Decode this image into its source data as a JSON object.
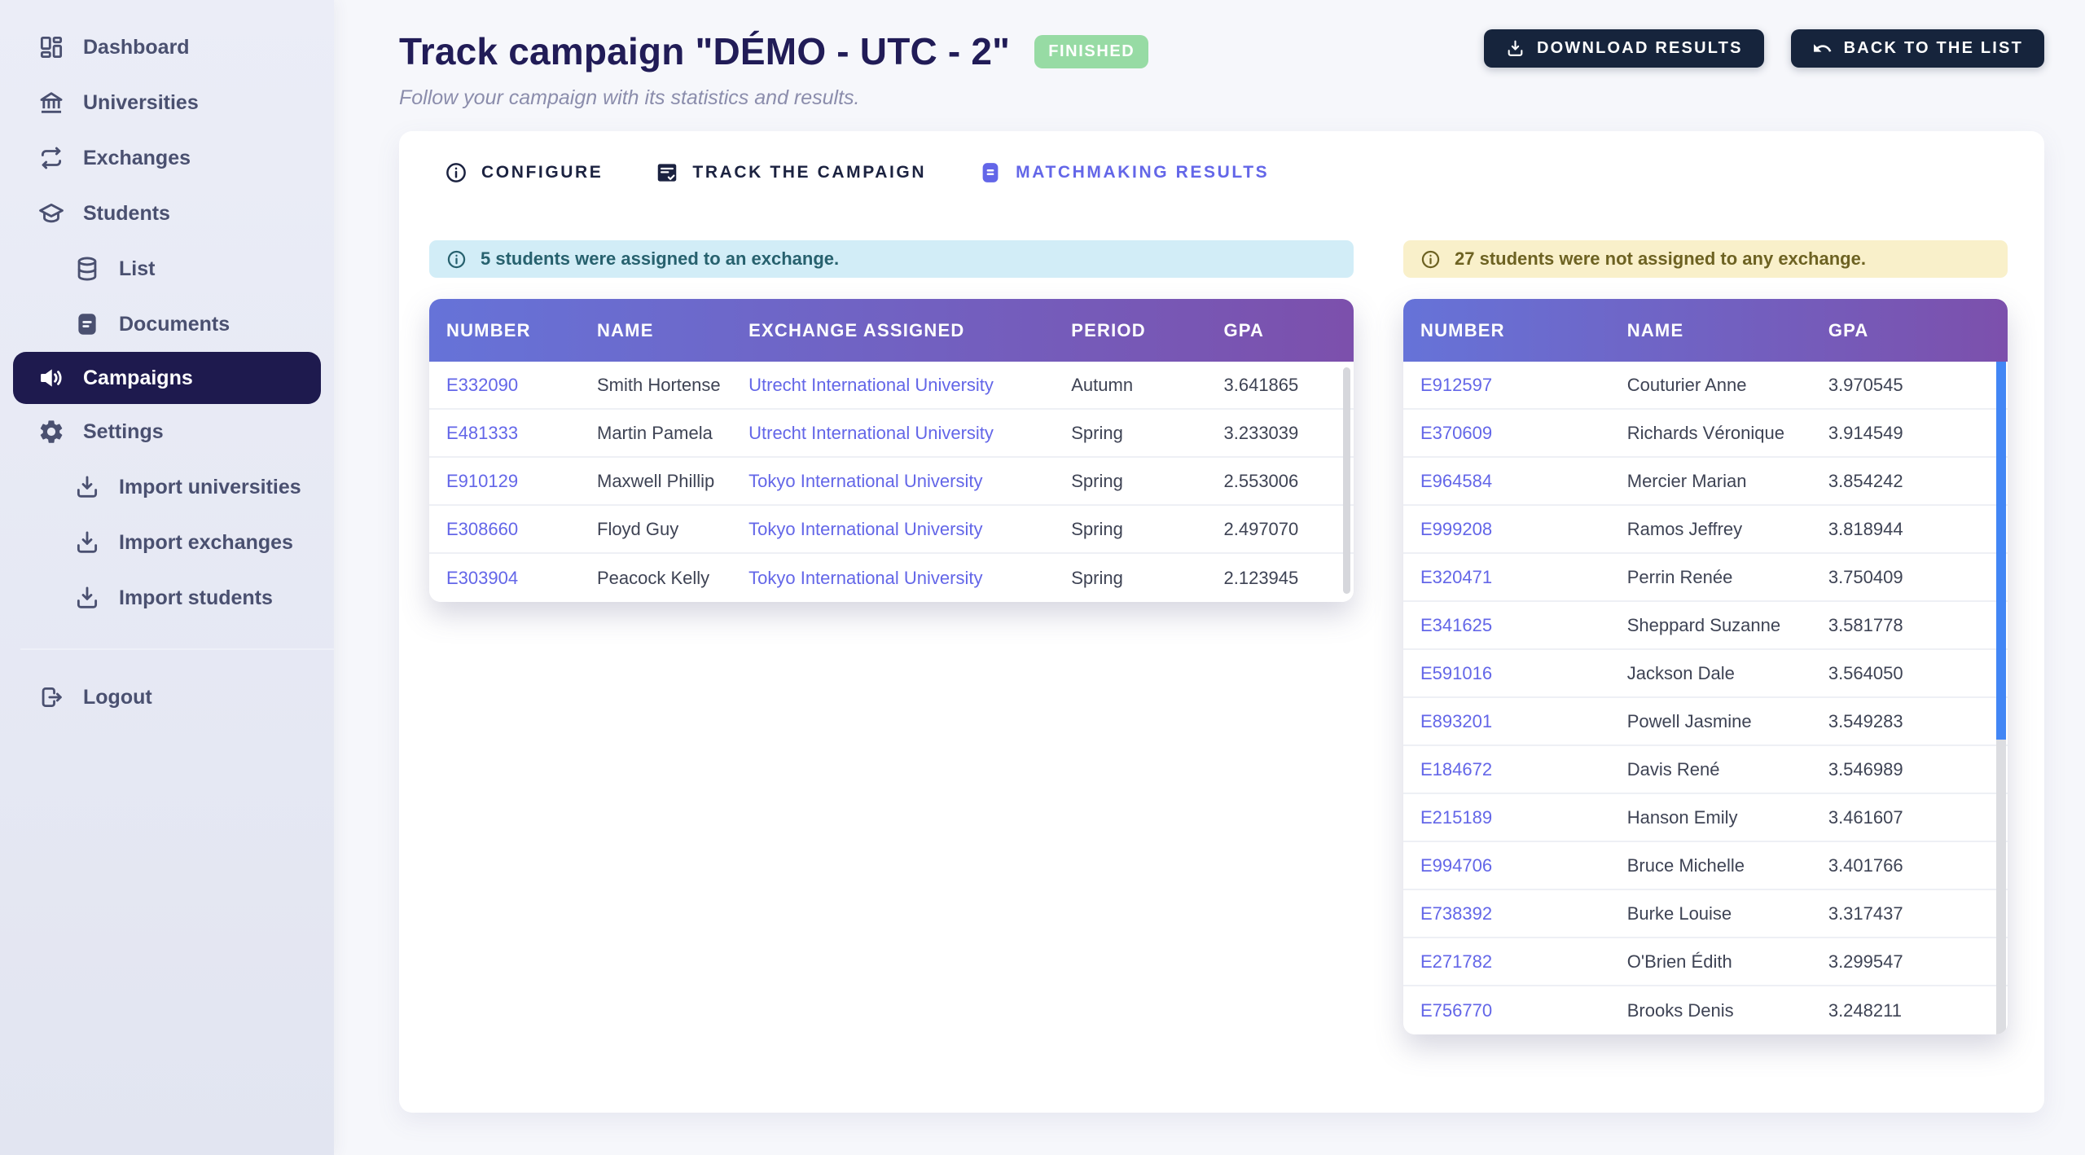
{
  "colors": {
    "accent": "#6366e8",
    "dark_button": "#16243c",
    "active_pill": "#1e1a4e",
    "badge_green": "#97dba4",
    "title": "#211c57",
    "grad1": "#6673d8",
    "grad2": "#7c50ac",
    "blue_bg": "#d2edf7",
    "blue_tx": "#27616e",
    "yellow_bg": "#f9f0ca",
    "yellow_tx": "#6d6222",
    "scrollbar_blue": "#4286f5"
  },
  "sidebar": {
    "items": [
      {
        "label": "Dashboard",
        "icon": "dashboard-icon"
      },
      {
        "label": "Universities",
        "icon": "bank-icon"
      },
      {
        "label": "Exchanges",
        "icon": "swap-icon"
      },
      {
        "label": "Students",
        "icon": "graduation-cap-icon"
      },
      {
        "label": "List",
        "icon": "database-icon",
        "indent": true
      },
      {
        "label": "Documents",
        "icon": "document-icon",
        "indent": true
      },
      {
        "label": "Campaigns",
        "icon": "megaphone-icon",
        "active": true
      },
      {
        "label": "Settings",
        "icon": "gear-icon"
      },
      {
        "label": "Import universities",
        "icon": "download-icon",
        "indent": true
      },
      {
        "label": "Import exchanges",
        "icon": "download-icon",
        "indent": true
      },
      {
        "label": "Import students",
        "icon": "download-icon",
        "indent": true
      }
    ],
    "logout_label": "Logout",
    "logout_icon": "logout-icon"
  },
  "header": {
    "title": "Track campaign \"DÉMO - UTC - 2\"",
    "status_badge": "FINISHED",
    "subtitle": "Follow your campaign with its statistics and results.",
    "download_button": "DOWNLOAD RESULTS",
    "download_icon": "download-icon",
    "back_button": "BACK TO THE LIST",
    "back_icon": "undo-icon"
  },
  "tabs": [
    {
      "label": "CONFIGURE",
      "icon": "info-icon"
    },
    {
      "label": "TRACK THE CAMPAIGN",
      "icon": "clipboard-check-icon"
    },
    {
      "label": "MATCHMAKING RESULTS",
      "icon": "file-icon",
      "active": true
    }
  ],
  "assigned": {
    "banner": "5 students were assigned to an exchange.",
    "banner_icon": "info-icon",
    "columns": [
      "NUMBER",
      "NAME",
      "EXCHANGE ASSIGNED",
      "PERIOD",
      "GPA"
    ],
    "rows": [
      [
        "E332090",
        "Smith Hortense",
        "Utrecht International University",
        "Autumn",
        "3.641865"
      ],
      [
        "E481333",
        "Martin Pamela",
        "Utrecht International University",
        "Spring",
        "3.233039"
      ],
      [
        "E910129",
        "Maxwell Phillip",
        "Tokyo International University",
        "Spring",
        "2.553006"
      ],
      [
        "E308660",
        "Floyd Guy",
        "Tokyo International University",
        "Spring",
        "2.497070"
      ],
      [
        "E303904",
        "Peacock Kelly",
        "Tokyo International University",
        "Spring",
        "2.123945"
      ]
    ]
  },
  "unassigned": {
    "banner": "27 students were not assigned to any exchange.",
    "banner_icon": "info-icon",
    "columns": [
      "NUMBER",
      "NAME",
      "GPA"
    ],
    "rows": [
      [
        "E912597",
        "Couturier Anne",
        "3.970545"
      ],
      [
        "E370609",
        "Richards Véronique",
        "3.914549"
      ],
      [
        "E964584",
        "Mercier Marian",
        "3.854242"
      ],
      [
        "E999208",
        "Ramos Jeffrey",
        "3.818944"
      ],
      [
        "E320471",
        "Perrin Renée",
        "3.750409"
      ],
      [
        "E341625",
        "Sheppard Suzanne",
        "3.581778"
      ],
      [
        "E591016",
        "Jackson Dale",
        "3.564050"
      ],
      [
        "E893201",
        "Powell Jasmine",
        "3.549283"
      ],
      [
        "E184672",
        "Davis René",
        "3.546989"
      ],
      [
        "E215189",
        "Hanson Emily",
        "3.461607"
      ],
      [
        "E994706",
        "Bruce Michelle",
        "3.401766"
      ],
      [
        "E738392",
        "Burke Louise",
        "3.317437"
      ],
      [
        "E271782",
        "O'Brien Édith",
        "3.299547"
      ],
      [
        "E756770",
        "Brooks Denis",
        "3.248211"
      ]
    ]
  }
}
